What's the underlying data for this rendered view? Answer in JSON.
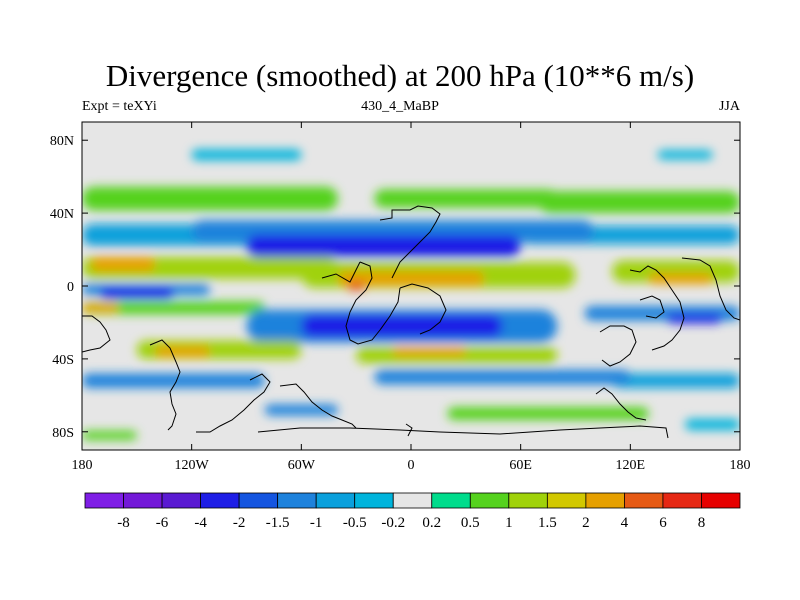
{
  "chart_data": {
    "type": "heatmap",
    "title": "Divergence (smoothed) at 200 hPa (10**6 m/s)",
    "left_label": "Expt = teXYi",
    "center_label": "430_4_MaBP",
    "right_label": "JJA",
    "x_ticks": [
      "180",
      "120W",
      "60W",
      "0",
      "60E",
      "120E",
      "180"
    ],
    "x_tick_values": [
      -180,
      -120,
      -60,
      0,
      60,
      120,
      180
    ],
    "y_ticks": [
      "80N",
      "40N",
      "0",
      "40S",
      "80S"
    ],
    "y_tick_values": [
      80,
      40,
      0,
      -40,
      -80
    ],
    "xlim": [
      -180,
      180
    ],
    "ylim": [
      -90,
      90
    ],
    "colorbar": {
      "labels": [
        "-8",
        "-6",
        "-4",
        "-2",
        "-1.5",
        "-1",
        "-0.5",
        "-0.2",
        "0.2",
        "0.5",
        "1",
        "1.5",
        "2",
        "4",
        "6",
        "8"
      ],
      "colors": [
        "#7f1ee6",
        "#7318d8",
        "#5a1ad2",
        "#1e1ee6",
        "#1455e0",
        "#1e82dc",
        "#0aa0dc",
        "#00b4dc",
        "#e6e6e6",
        "#00dc8c",
        "#55d21e",
        "#a0d20a",
        "#d2c800",
        "#e6a000",
        "#e65a14",
        "#e62814",
        "#e60000"
      ]
    },
    "bands": [
      {
        "lat": 72,
        "h": 6,
        "lon": [
          -120,
          -60
        ],
        "level": -0.4
      },
      {
        "lat": 72,
        "h": 5,
        "lon": [
          135,
          165
        ],
        "level": -0.4
      },
      {
        "lat": 48,
        "h": 13,
        "lon": [
          -180,
          -40
        ],
        "level": 0.6
      },
      {
        "lat": 48,
        "h": 10,
        "lon": [
          -20,
          80
        ],
        "level": 0.6
      },
      {
        "lat": 46,
        "h": 12,
        "lon": [
          70,
          180
        ],
        "level": 0.6
      },
      {
        "lat": 28,
        "h": 12,
        "lon": [
          -180,
          -50
        ],
        "level": -0.8
      },
      {
        "lat": 30,
        "h": 12,
        "lon": [
          -120,
          100
        ],
        "level": -1.2
      },
      {
        "lat": 22,
        "h": 12,
        "lon": [
          -90,
          60
        ],
        "level": -2.5
      },
      {
        "lat": 28,
        "h": 10,
        "lon": [
          60,
          180
        ],
        "level": -0.8
      },
      {
        "lat": 10,
        "h": 12,
        "lon": [
          -180,
          -40
        ],
        "level": 1.2
      },
      {
        "lat": 12,
        "h": 8,
        "lon": [
          -175,
          -140
        ],
        "level": 2.5
      },
      {
        "lat": 6,
        "h": 14,
        "lon": [
          -60,
          90
        ],
        "level": 1.2
      },
      {
        "lat": 4,
        "h": 8,
        "lon": [
          -40,
          40
        ],
        "level": 2.5
      },
      {
        "lat": 0,
        "h": 5,
        "lon": [
          -35,
          -25
        ],
        "level": 5
      },
      {
        "lat": 8,
        "h": 12,
        "lon": [
          110,
          180
        ],
        "level": 1.2
      },
      {
        "lat": 4,
        "h": 6,
        "lon": [
          130,
          165
        ],
        "level": 3
      },
      {
        "lat": -2,
        "h": 6,
        "lon": [
          -180,
          -110
        ],
        "level": -1.3
      },
      {
        "lat": -4,
        "h": 6,
        "lon": [
          -170,
          -130
        ],
        "level": -3
      },
      {
        "lat": -12,
        "h": 7,
        "lon": [
          -180,
          -80
        ],
        "level": 0.8
      },
      {
        "lat": -12,
        "h": 5,
        "lon": [
          -180,
          -160
        ],
        "level": 2.5
      },
      {
        "lat": -22,
        "h": 18,
        "lon": [
          -90,
          80
        ],
        "level": -1.2
      },
      {
        "lat": -22,
        "h": 12,
        "lon": [
          -60,
          50
        ],
        "level": -3
      },
      {
        "lat": -15,
        "h": 8,
        "lon": [
          95,
          180
        ],
        "level": -1.2
      },
      {
        "lat": -18,
        "h": 5,
        "lon": [
          140,
          170
        ],
        "level": -3
      },
      {
        "lat": -35,
        "h": 10,
        "lon": [
          -150,
          -60
        ],
        "level": 1.2
      },
      {
        "lat": -36,
        "h": 6,
        "lon": [
          -140,
          -110
        ],
        "level": 2.5
      },
      {
        "lat": -38,
        "h": 9,
        "lon": [
          -30,
          80
        ],
        "level": 1.2
      },
      {
        "lat": -36,
        "h": 5,
        "lon": [
          -10,
          30
        ],
        "level": 2.5
      },
      {
        "lat": -52,
        "h": 8,
        "lon": [
          -180,
          -80
        ],
        "level": -1.2
      },
      {
        "lat": -50,
        "h": 8,
        "lon": [
          -20,
          120
        ],
        "level": -1.2
      },
      {
        "lat": -52,
        "h": 8,
        "lon": [
          110,
          180
        ],
        "level": -0.8
      },
      {
        "lat": -68,
        "h": 6,
        "lon": [
          -80,
          -40
        ],
        "level": -1.2
      },
      {
        "lat": -70,
        "h": 7,
        "lon": [
          20,
          130
        ],
        "level": 0.6
      },
      {
        "lat": -76,
        "h": 6,
        "lon": [
          150,
          180
        ],
        "level": -0.4
      },
      {
        "lat": -82,
        "h": 5,
        "lon": [
          -180,
          -150
        ],
        "level": 0.6
      }
    ]
  }
}
